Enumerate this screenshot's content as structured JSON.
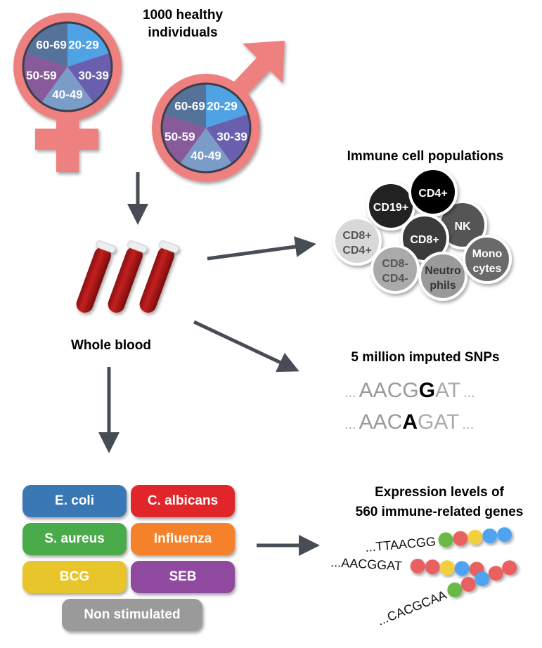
{
  "title": [
    "1000 healthy",
    "individuals"
  ],
  "age_groups": [
    "20-29",
    "30-39",
    "40-49",
    "50-59",
    "60-69"
  ],
  "age_colors": [
    "#4fa3e5",
    "#6a5fae",
    "#7b9cc9",
    "#875a9a",
    "#55739a"
  ],
  "symbol_color": "#ee8080",
  "whole_blood_label": "Whole blood",
  "immune": {
    "title": "Immune cell populations",
    "cells": [
      {
        "label": "CD8+",
        "label2": "CD4+",
        "color": "#d8d8d8",
        "text": "#555555"
      },
      {
        "label": "CD19+",
        "label2": "",
        "color": "#222222",
        "text": "#ffffff"
      },
      {
        "label": "NK",
        "label2": "",
        "color": "#555555",
        "text": "#ffffff"
      },
      {
        "label": "CD4+",
        "label2": "",
        "color": "#000000",
        "text": "#ffffff"
      },
      {
        "label": "CD8+",
        "label2": "",
        "color": "#3a3a3a",
        "text": "#ffffff"
      },
      {
        "label": "CD8-",
        "label2": "CD4-",
        "color": "#aaaaaa",
        "text": "#555555"
      },
      {
        "label": "Neutro",
        "label2": "phils",
        "color": "#9a9a9a",
        "text": "#333333"
      },
      {
        "label": "Mono",
        "label2": "cytes",
        "color": "#6a6a6a",
        "text": "#ffffff"
      }
    ]
  },
  "snps": {
    "title": "5 million imputed SNPs",
    "seq1": {
      "pre": "AACG",
      "alt": "G",
      "post": "AT"
    },
    "seq2": {
      "pre": "AAC",
      "alt": "A",
      "post": "GAT"
    },
    "ellipsis": "..."
  },
  "stimuli": [
    {
      "label": "E. coli",
      "color": "#3a78b5"
    },
    {
      "label": "C. albicans",
      "color": "#e0262b"
    },
    {
      "label": "S. aureus",
      "color": "#4aab4a"
    },
    {
      "label": "Influenza",
      "color": "#f5822a"
    },
    {
      "label": "BCG",
      "color": "#e8c52a"
    },
    {
      "label": "SEB",
      "color": "#8f4aa0"
    },
    {
      "label": "Non stimulated",
      "color": "#9a9a9a"
    }
  ],
  "expression": {
    "title": [
      "Expression levels of",
      "560 immune-related genes"
    ],
    "sequences": [
      {
        "text": "...TTAACGG",
        "beads": [
          "#6bb844",
          "#e96060",
          "#f4cf3c",
          "#4fa3f0",
          "#4fa3f0"
        ]
      },
      {
        "text": "...AACGGAT",
        "beads": [
          "#e96060",
          "#e96060",
          "#f4cf3c",
          "#4fa3f0",
          "#e96060"
        ]
      },
      {
        "text": "...CACGCAA",
        "beads": [
          "#6bb844",
          "#e96060",
          "#4fa3f0",
          "#e96060",
          "#e96060"
        ]
      }
    ]
  }
}
